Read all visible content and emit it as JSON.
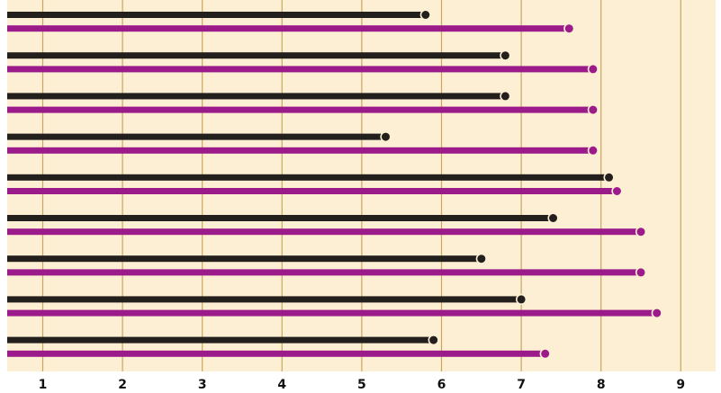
{
  "chart_data": {
    "type": "bar",
    "orientation": "horizontal",
    "style": "lollipop",
    "title": "",
    "xlabel": "",
    "ylabel": "",
    "categories": [
      "",
      "",
      "",
      "",
      "",
      "",
      "",
      "",
      ""
    ],
    "x_ticks": [
      1,
      2,
      3,
      4,
      5,
      6,
      7,
      8,
      9
    ],
    "xlim": [
      0.55,
      9.4
    ],
    "grid": "vertical",
    "legend": "none",
    "series": [
      {
        "color": "#231f1c",
        "values": [
          5.8,
          6.8,
          6.8,
          5.3,
          8.1,
          7.4,
          6.5,
          7.0,
          5.9
        ]
      },
      {
        "color": "#9b1b8b",
        "values": [
          7.6,
          7.9,
          7.9,
          7.9,
          8.2,
          8.5,
          8.5,
          8.7,
          7.3
        ]
      }
    ],
    "colors": {
      "background": "#fdefd3",
      "gridline": "#c9a55e",
      "dot_stroke": "#fdefd3",
      "tick_text": "#111111"
    }
  }
}
